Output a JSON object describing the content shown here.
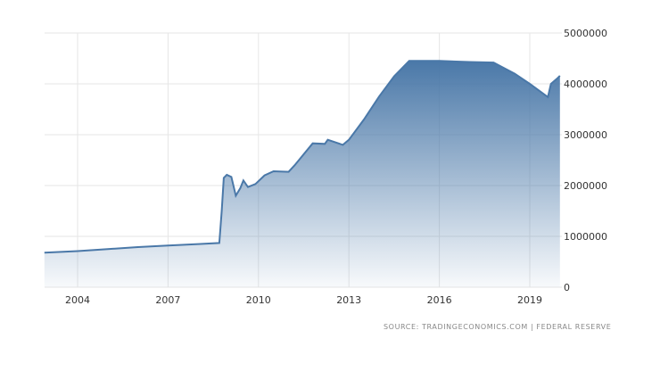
{
  "chart_data": {
    "type": "area",
    "title": "",
    "xlabel": "",
    "ylabel": "",
    "xlim": [
      2002.9,
      2020.05
    ],
    "ylim": [
      0,
      5000000
    ],
    "grid": true,
    "legend": "none",
    "x_ticks": [
      "2004",
      "2007",
      "2010",
      "2013",
      "2016",
      "2019"
    ],
    "y_ticks": [
      "0",
      "1000000",
      "2000000",
      "3000000",
      "4000000",
      "5000000"
    ],
    "series": [
      {
        "color": "#4a78a8",
        "x": [
          2002.9,
          2004,
          2005,
          2006,
          2007,
          2008,
          2008.7,
          2008.78,
          2008.85,
          2008.95,
          2009.1,
          2009.25,
          2009.4,
          2009.5,
          2009.65,
          2009.9,
          2010.2,
          2010.5,
          2011.0,
          2011.2,
          2011.8,
          2012.2,
          2012.3,
          2012.8,
          2013.0,
          2013.5,
          2014.0,
          2014.5,
          2015.0,
          2016.0,
          2017.0,
          2017.8,
          2018.5,
          2019.0,
          2019.6,
          2019.7,
          2019.9,
          2020.0
        ],
        "y": [
          680000,
          710000,
          750000,
          790000,
          820000,
          850000,
          870000,
          1500000,
          2150000,
          2210000,
          2170000,
          1800000,
          1950000,
          2100000,
          1970000,
          2030000,
          2200000,
          2280000,
          2270000,
          2400000,
          2830000,
          2820000,
          2900000,
          2800000,
          2900000,
          3300000,
          3750000,
          4150000,
          4450000,
          4450000,
          4430000,
          4420000,
          4200000,
          4000000,
          3740000,
          4000000,
          4100000,
          4160000
        ]
      }
    ]
  },
  "source": "SOURCE: TRADINGECONOMICS.COM | FEDERAL RESERVE"
}
